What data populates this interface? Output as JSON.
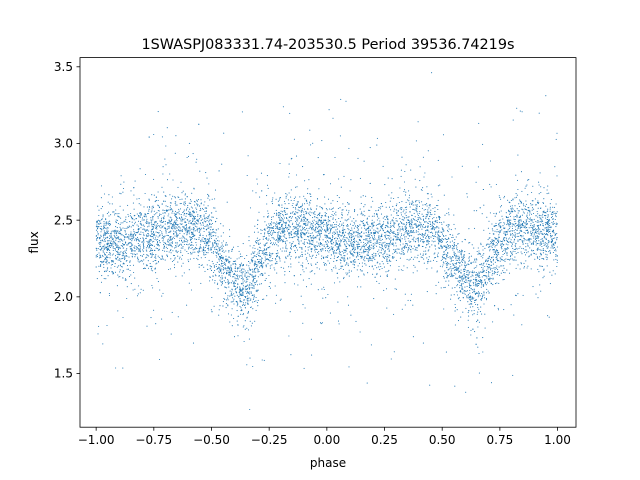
{
  "chart_data": {
    "type": "scatter",
    "title": "1SWASPJ083331.74-203530.5 Period 39536.74219s",
    "xlabel": "phase",
    "ylabel": "flux",
    "xlim": [
      -1.07,
      1.08
    ],
    "ylim": [
      1.15,
      3.56
    ],
    "xticks": [
      -1.0,
      -0.75,
      -0.5,
      -0.25,
      0.0,
      0.25,
      0.5,
      0.75,
      1.0
    ],
    "xtick_labels": [
      "−1.00",
      "−0.75",
      "−0.50",
      "−0.25",
      "0.00",
      "0.25",
      "0.50",
      "0.75",
      "1.00"
    ],
    "yticks": [
      1.5,
      2.0,
      2.5,
      3.0,
      3.5
    ],
    "ytick_labels": [
      "1.5",
      "2.0",
      "2.5",
      "3.0",
      "3.5"
    ],
    "grid": false,
    "legend": "none",
    "marker_color": "#1f77b4",
    "series": [
      {
        "description_of_trend": "phase-folded light curve, flux vs phase",
        "phase": [
          -1.0,
          -0.9,
          -0.8,
          -0.7,
          -0.62,
          -0.55,
          -0.5,
          -0.45,
          -0.4,
          -0.37,
          -0.33,
          -0.3,
          -0.25,
          -0.2,
          -0.15,
          -0.1,
          0.0,
          0.1,
          0.2,
          0.3,
          0.38,
          0.45,
          0.5,
          0.55,
          0.6,
          0.63,
          0.67,
          0.7,
          0.75,
          0.8,
          0.85,
          0.9,
          1.0
        ],
        "mean_flux": [
          2.36,
          2.35,
          2.38,
          2.44,
          2.47,
          2.45,
          2.35,
          2.2,
          2.1,
          2.06,
          2.1,
          2.2,
          2.35,
          2.44,
          2.46,
          2.44,
          2.38,
          2.34,
          2.36,
          2.42,
          2.46,
          2.44,
          2.35,
          2.2,
          2.1,
          2.05,
          2.1,
          2.2,
          2.35,
          2.44,
          2.46,
          2.45,
          2.42
        ]
      }
    ]
  }
}
